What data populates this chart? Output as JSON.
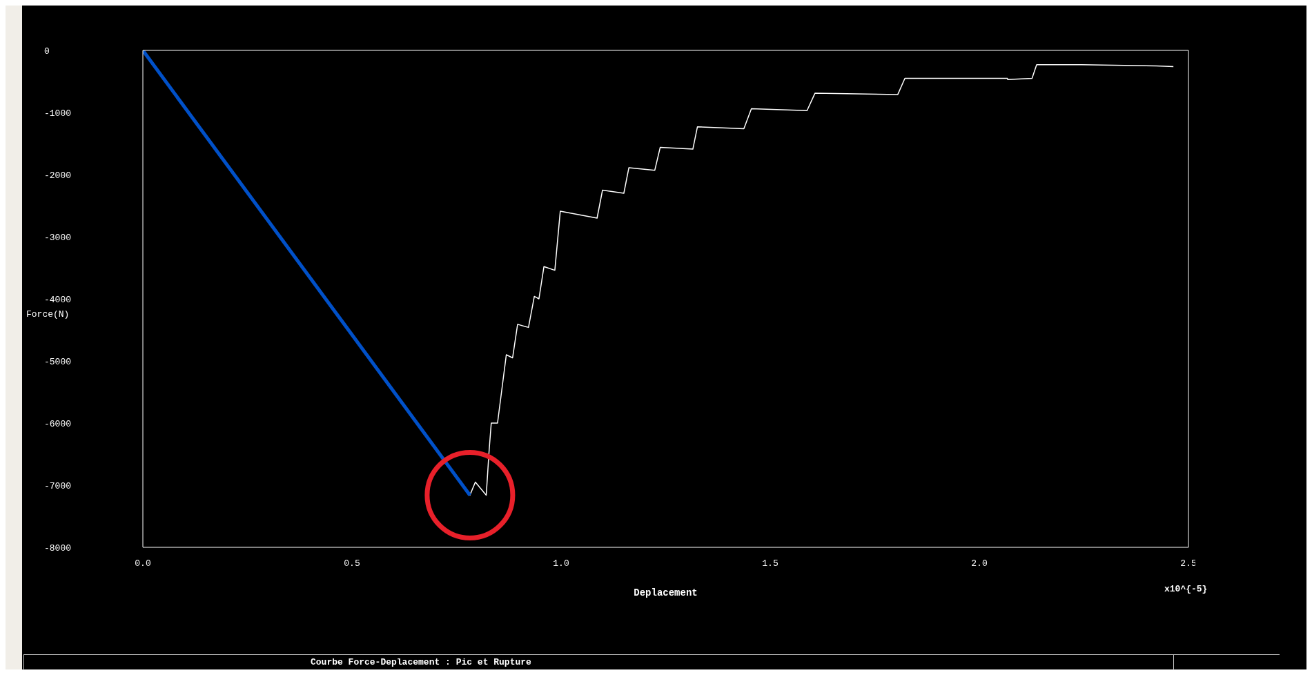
{
  "chart_data": {
    "type": "line",
    "title": "Courbe Force-Deplacement : Pic et Rupture",
    "xlabel": "Deplacement",
    "ylabel": "Force(N)",
    "annotations": [
      "x10^{-5}"
    ],
    "xlim": [
      0,
      2.5
    ],
    "xticks": [
      {
        "value": 0,
        "label": "0.0"
      },
      {
        "value": 0.5,
        "label": "0.5"
      },
      {
        "value": 1,
        "label": "1.0"
      },
      {
        "value": 1.5,
        "label": "1.5"
      },
      {
        "value": 2,
        "label": "2.0"
      },
      {
        "value": 2.5,
        "label": "2.5"
      }
    ],
    "ylim": [
      -8000,
      0
    ],
    "yticks": [
      -8000,
      -7000,
      -6000,
      -5000,
      -4000,
      -3000,
      -2000,
      -1000,
      0
    ],
    "grid": false,
    "legend": false,
    "marker": "none",
    "line_style": "solid",
    "series": [
      {
        "color": "#ffffff",
        "x": [
          0,
          0.782,
          0.795,
          0.821,
          0.828,
          0.833,
          0.848,
          0.869,
          0.884,
          0.896,
          0.922,
          0.936,
          0.947,
          0.959,
          0.985,
          0.998,
          1.086,
          1.099,
          1.15,
          1.162,
          1.224,
          1.237,
          1.315,
          1.326,
          1.437,
          1.455,
          1.588,
          1.607,
          1.805,
          1.822,
          2.067,
          2.068,
          2.126,
          2.137,
          2.245,
          2.423,
          2.464
        ],
        "values": [
          0,
          -7160,
          -6950,
          -7160,
          -6430,
          -6000,
          -6000,
          -4900,
          -4950,
          -4410,
          -4460,
          -3960,
          -4000,
          -3480,
          -3540,
          -2590,
          -2700,
          -2250,
          -2300,
          -1890,
          -1930,
          -1560,
          -1590,
          -1230,
          -1260,
          -940,
          -970,
          -690,
          -710,
          -450,
          -450,
          -470,
          -450,
          -230,
          -230,
          -250,
          -260
        ]
      },
      {
        "color": "#0050c8",
        "x": [
          0,
          0.782
        ],
        "values": [
          0,
          -7160
        ]
      }
    ]
  }
}
